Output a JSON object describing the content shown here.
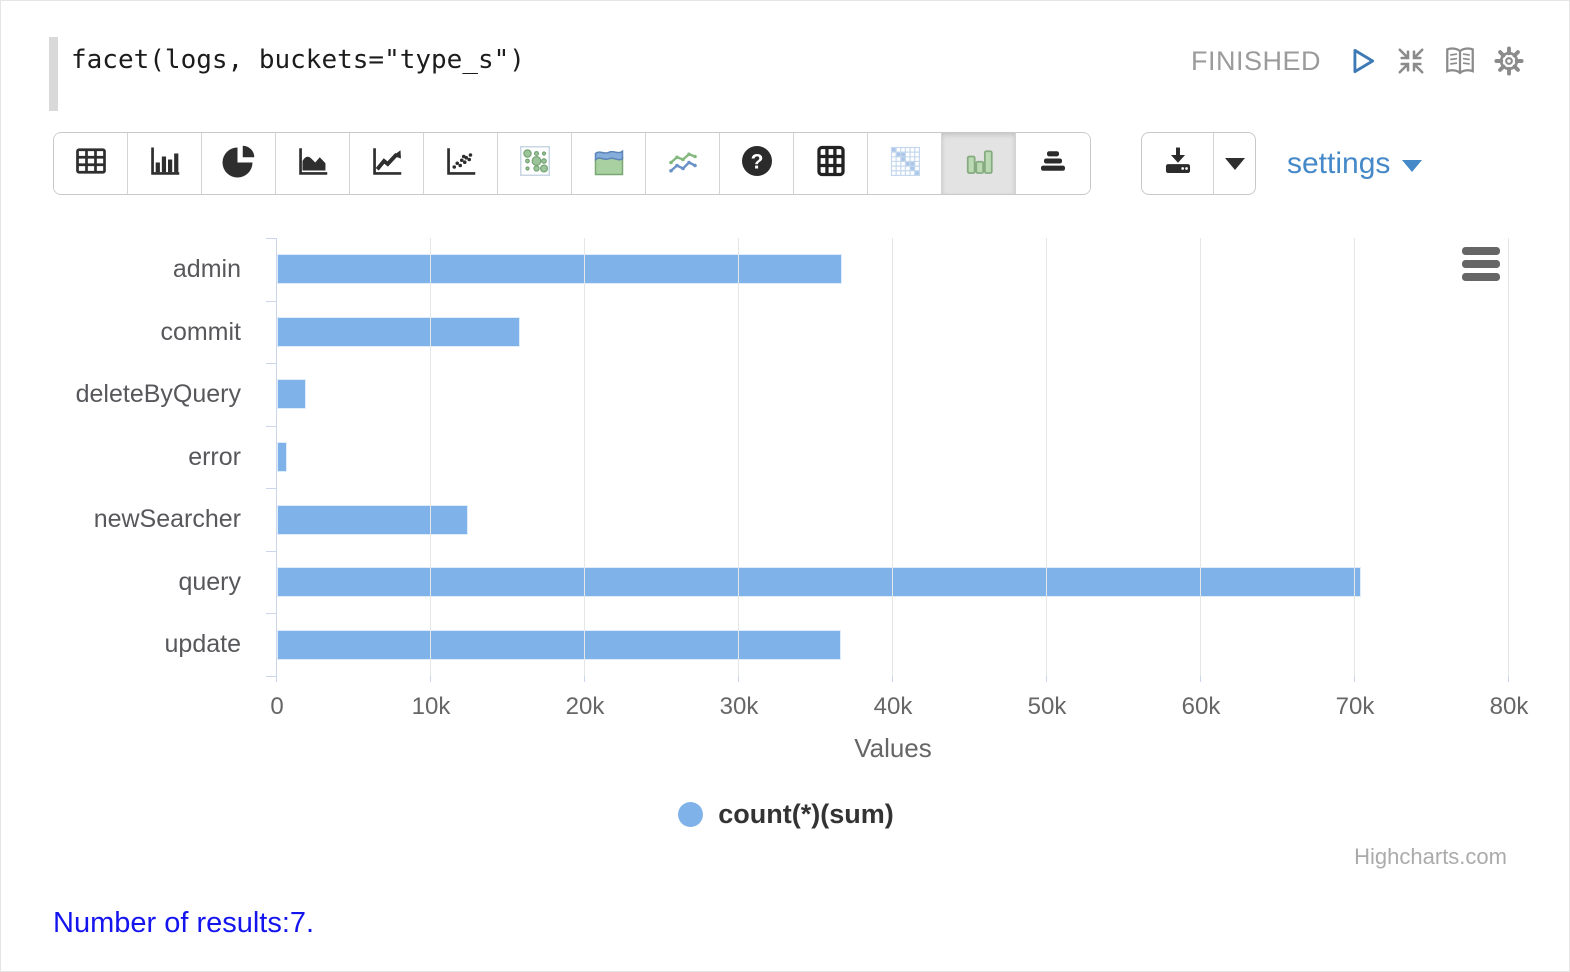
{
  "editor": {
    "code": "facet(logs, buckets=\"type_s\")",
    "status": "FINISHED",
    "action_icons": [
      "play-icon",
      "compress-icon",
      "book-icon",
      "gear-icon"
    ]
  },
  "toolbar": {
    "viz_buttons": [
      "table",
      "bar-chart",
      "pie-chart",
      "area-chart",
      "line-chart",
      "scatter",
      "dot-matrix",
      "stacked-area",
      "multi-line",
      "help",
      "grid",
      "heatmap",
      "column-chart",
      "levels"
    ],
    "selected_viz": "column-chart",
    "download_icon": "download-icon",
    "settings_label": "settings"
  },
  "chart_data": {
    "type": "bar",
    "orientation": "horizontal",
    "categories": [
      "admin",
      "commit",
      "deleteByQuery",
      "error",
      "newSearcher",
      "query",
      "update"
    ],
    "values": [
      36700,
      15800,
      1900,
      650,
      12400,
      70400,
      36600
    ],
    "series_name": "count(*)(sum)",
    "xlabel": "Values",
    "xlim": [
      0,
      80000
    ],
    "x_tick_labels": [
      "0",
      "10k",
      "20k",
      "30k",
      "40k",
      "50k",
      "60k",
      "70k",
      "80k"
    ],
    "grid": true,
    "legend_position": "bottom",
    "bar_color": "#7fb2e9",
    "credits": "Highcharts.com"
  },
  "footer": {
    "results_text": "Number of results:7."
  }
}
